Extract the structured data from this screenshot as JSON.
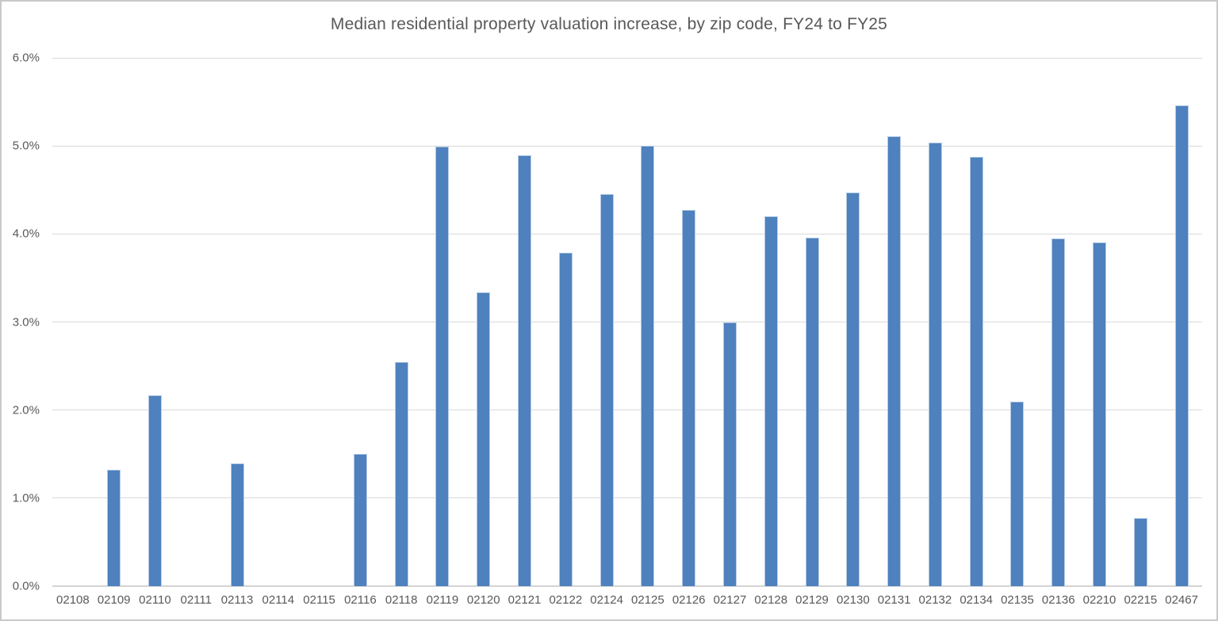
{
  "chart_data": {
    "type": "bar",
    "title": "Median residential property valuation increase, by zip code, FY24 to FY25",
    "categories": [
      "02108",
      "02109",
      "02110",
      "02111",
      "02113",
      "02114",
      "02115",
      "02116",
      "02118",
      "02119",
      "02120",
      "02121",
      "02122",
      "02124",
      "02125",
      "02126",
      "02127",
      "02128",
      "02129",
      "02130",
      "02131",
      "02132",
      "02134",
      "02135",
      "02136",
      "02210",
      "02215",
      "02467"
    ],
    "values": [
      0,
      1.32,
      2.17,
      0,
      1.39,
      0,
      0,
      1.5,
      2.55,
      4.99,
      3.34,
      4.89,
      3.79,
      4.45,
      5.0,
      4.27,
      3.0,
      4.2,
      3.96,
      4.47,
      5.11,
      5.04,
      4.88,
      2.1,
      3.95,
      3.9,
      0.77,
      5.46
    ],
    "unit": "%",
    "xlabel": "",
    "ylabel": "",
    "ylim": [
      0,
      6
    ],
    "yticks": [
      "0.0%",
      "1.0%",
      "2.0%",
      "3.0%",
      "4.0%",
      "5.0%",
      "6.0%"
    ],
    "grid": true,
    "legend_position": "none",
    "colors": {
      "bar": "#4e81bd",
      "bar_edge": "#b7cce6",
      "gridline": "#d9d9d9",
      "axis_line": "#d4d4d4",
      "text": "#595959",
      "chart_border": "#c9c9c9",
      "background": "#ffffff"
    }
  }
}
